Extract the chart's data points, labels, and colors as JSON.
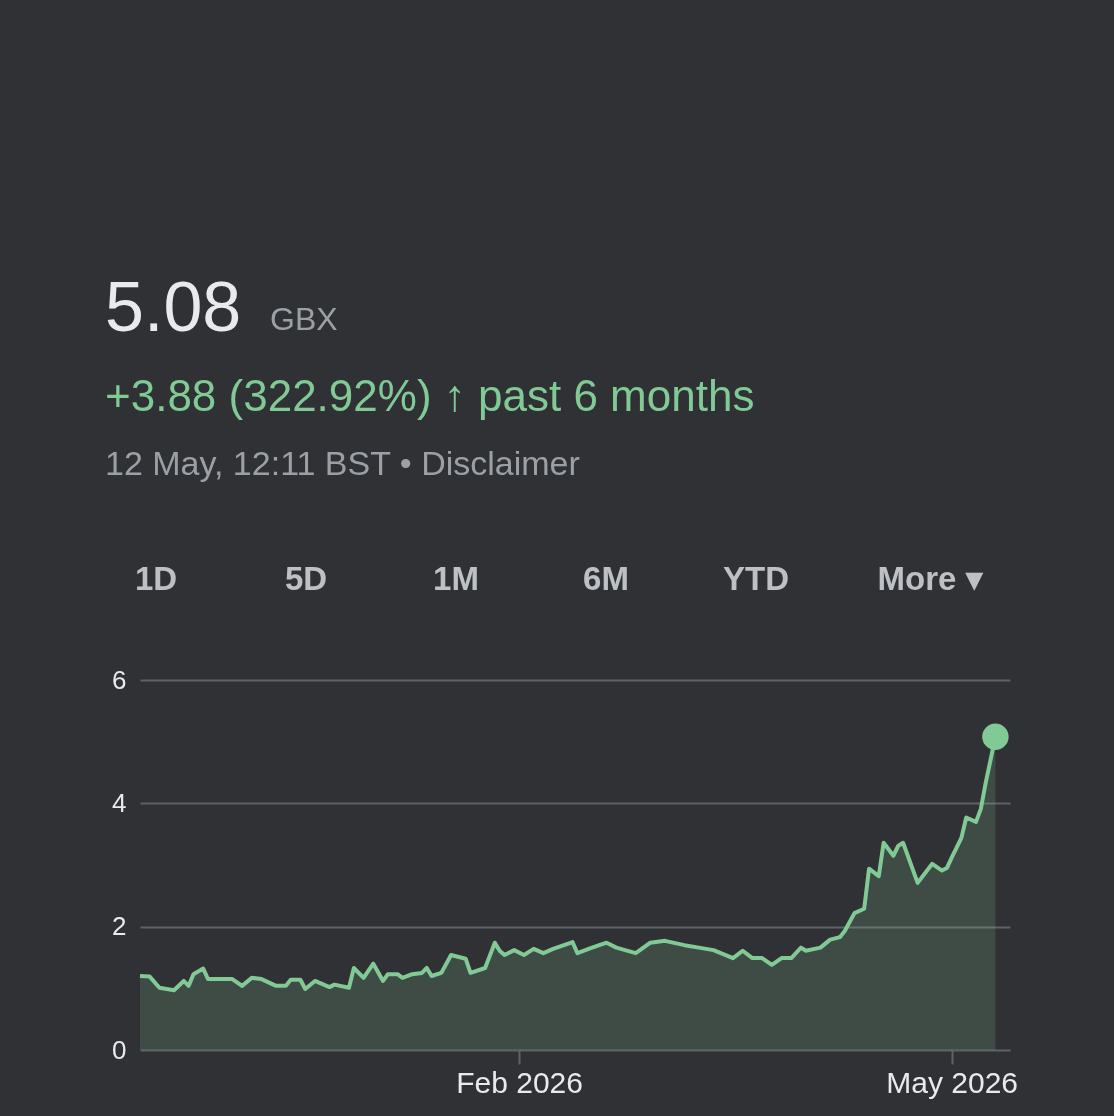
{
  "chart_data": {
    "type": "area",
    "title": "5.08",
    "annotations": [
      "GBX",
      "+3.88 (322.92%) ↑ past 6 months",
      "12 May, 12:11 BST • Disclaimer",
      "1D",
      "5D",
      "1M",
      "6M",
      "YTD",
      "More ▾"
    ],
    "x": [
      "2025-11-15",
      "2025-11-17",
      "2025-11-19",
      "2025-11-22",
      "2025-11-24",
      "2025-11-25",
      "2025-11-26",
      "2025-11-28",
      "2025-11-29",
      "2025-12-04",
      "2025-12-06",
      "2025-12-08",
      "2025-12-10",
      "2025-12-13",
      "2025-12-15",
      "2025-12-16",
      "2025-12-18",
      "2025-12-19",
      "2025-12-21",
      "2025-12-24",
      "2025-12-25",
      "2025-12-28",
      "2025-12-29",
      "2025-12-31",
      "2026-01-02",
      "2026-01-04",
      "2026-01-05",
      "2026-01-07",
      "2026-01-08",
      "2026-01-10",
      "2026-01-12",
      "2026-01-13",
      "2026-01-14",
      "2026-01-16",
      "2026-01-18",
      "2026-01-21",
      "2026-01-22",
      "2026-01-25",
      "2026-01-27",
      "2026-01-28",
      "2026-01-29",
      "2026-01-31",
      "2026-02-02",
      "2026-02-04",
      "2026-02-06",
      "2026-02-08",
      "2026-02-12",
      "2026-02-13",
      "2026-02-16",
      "2026-02-19",
      "2026-02-21",
      "2026-02-25",
      "2026-02-28",
      "2026-03-03",
      "2026-03-07",
      "2026-03-10",
      "2026-03-13",
      "2026-03-17",
      "2026-03-19",
      "2026-03-21",
      "2026-03-23",
      "2026-03-25",
      "2026-03-27",
      "2026-03-29",
      "2026-03-31",
      "2026-04-01",
      "2026-04-04",
      "2026-04-06",
      "2026-04-08",
      "2026-04-09",
      "2026-04-11",
      "2026-04-13",
      "2026-04-14",
      "2026-04-16",
      "2026-04-17",
      "2026-04-19",
      "2026-04-20",
      "2026-04-21",
      "2026-04-24",
      "2026-04-27",
      "2026-04-29",
      "2026-04-30",
      "2026-05-01",
      "2026-05-03",
      "2026-05-04",
      "2026-05-06",
      "2026-05-07",
      "2026-05-08",
      "2026-05-10"
    ],
    "series": [
      {
        "color": "#81c995",
        "values": [
          1.2,
          1.19,
          1.01,
          0.97,
          1.12,
          1.04,
          1.23,
          1.32,
          1.15,
          1.15,
          1.04,
          1.17,
          1.15,
          1.04,
          1.04,
          1.14,
          1.14,
          0.99,
          1.12,
          1.02,
          1.06,
          1.01,
          1.33,
          1.17,
          1.4,
          1.12,
          1.23,
          1.23,
          1.17,
          1.23,
          1.25,
          1.33,
          1.2,
          1.25,
          1.54,
          1.48,
          1.25,
          1.33,
          1.74,
          1.61,
          1.54,
          1.62,
          1.54,
          1.64,
          1.57,
          1.64,
          1.75,
          1.57,
          1.66,
          1.74,
          1.66,
          1.57,
          1.74,
          1.77,
          1.7,
          1.66,
          1.62,
          1.49,
          1.61,
          1.49,
          1.49,
          1.38,
          1.49,
          1.49,
          1.66,
          1.61,
          1.66,
          1.79,
          1.83,
          1.93,
          2.22,
          2.29,
          2.94,
          2.82,
          3.36,
          3.15,
          3.31,
          3.36,
          2.71,
          3.02,
          2.91,
          2.95,
          3.12,
          3.44,
          3.77,
          3.7,
          3.91,
          4.33,
          5.08
        ]
      },
      {
        "type": "scatter",
        "color": "#81c995",
        "marker": "circle",
        "x": [
          "2026-05-10"
        ],
        "values": [
          5.08
        ]
      }
    ],
    "xlim": [
      "2025-11-15",
      "2026-05-13"
    ],
    "xticks": [
      {
        "value": "2026-02-01",
        "label": "Feb 2026"
      },
      {
        "value": "2026-05-01",
        "label": "May 2026"
      }
    ],
    "ylim": [
      0,
      6
    ],
    "yticks": [
      0,
      2,
      4,
      6
    ],
    "grid": "y",
    "marker": "none",
    "line_style": "solid"
  }
}
